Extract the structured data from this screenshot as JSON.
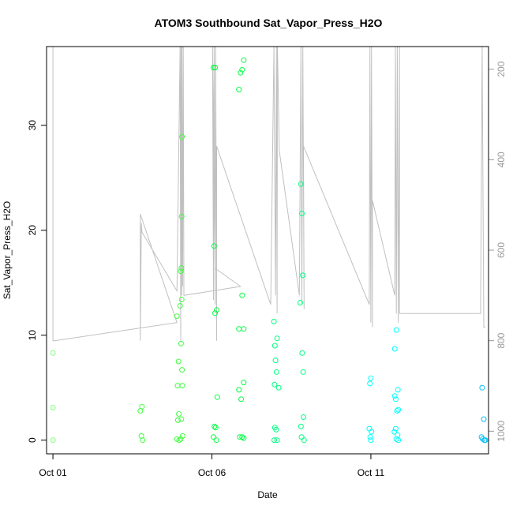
{
  "chart_data": {
    "type": "scatter",
    "title": "ATOM3 Southbound Sat_Vapor_Press_H2O",
    "xlabel": "Date",
    "ylabel": "Sat_Vapor_Press_H2O",
    "x_ticks": [
      {
        "label": "Oct 01",
        "day": 1
      },
      {
        "label": "Oct 06",
        "day": 6
      },
      {
        "label": "Oct 11",
        "day": 11
      }
    ],
    "xlim": [
      0.8,
      14.7
    ],
    "ylim": [
      -1.3,
      37.5
    ],
    "y_ticks": [
      0,
      10,
      20,
      30
    ],
    "y2_ticks": [
      200,
      400,
      600,
      800,
      1000
    ],
    "y2lim": [
      150,
      1050
    ],
    "y2_reversed": true,
    "grid": false,
    "colors": {
      "profile_line": "#c0c0c0",
      "point_colors": [
        "#80ff80",
        "#40ff40",
        "#00ff40",
        "#00ff80",
        "#00ffc0",
        "#00ffff",
        "#00c0ff",
        "#0080ff"
      ]
    },
    "points": [
      {
        "day": 1.0,
        "y": 8.3,
        "c": 0
      },
      {
        "day": 1.0,
        "y": 3.1,
        "c": 0
      },
      {
        "day": 1.0,
        "y": 0.0,
        "c": 0
      },
      {
        "day": 3.75,
        "y": 2.8,
        "c": 1
      },
      {
        "day": 3.8,
        "y": 3.2,
        "c": 1
      },
      {
        "day": 3.78,
        "y": 0.4,
        "c": 1
      },
      {
        "day": 3.82,
        "y": 0.0,
        "c": 1
      },
      {
        "day": 4.9,
        "y": 11.8,
        "c": 1
      },
      {
        "day": 4.92,
        "y": 5.2,
        "c": 1
      },
      {
        "day": 4.95,
        "y": 7.5,
        "c": 1
      },
      {
        "day": 4.96,
        "y": 2.5,
        "c": 1
      },
      {
        "day": 4.93,
        "y": 1.9,
        "c": 1
      },
      {
        "day": 4.9,
        "y": 0.1,
        "c": 1
      },
      {
        "day": 4.97,
        "y": 0.0,
        "c": 1
      },
      {
        "day": 5.0,
        "y": 12.8,
        "c": 1
      },
      {
        "day": 5.02,
        "y": 16.1,
        "c": 1
      },
      {
        "day": 5.04,
        "y": 16.4,
        "c": 1
      },
      {
        "day": 5.05,
        "y": 13.4,
        "c": 1
      },
      {
        "day": 5.05,
        "y": 21.3,
        "c": 1
      },
      {
        "day": 5.06,
        "y": 28.9,
        "c": 1
      },
      {
        "day": 5.03,
        "y": 9.2,
        "c": 1
      },
      {
        "day": 5.06,
        "y": 6.7,
        "c": 1
      },
      {
        "day": 5.07,
        "y": 5.2,
        "c": 1
      },
      {
        "day": 5.04,
        "y": 2.0,
        "c": 1
      },
      {
        "day": 5.08,
        "y": 0.4,
        "c": 1
      },
      {
        "day": 5.02,
        "y": 0.1,
        "c": 1
      },
      {
        "day": 6.05,
        "y": 35.5,
        "c": 2
      },
      {
        "day": 6.1,
        "y": 35.5,
        "c": 2
      },
      {
        "day": 6.07,
        "y": 18.5,
        "c": 2
      },
      {
        "day": 6.1,
        "y": 12.1,
        "c": 2
      },
      {
        "day": 6.15,
        "y": 12.4,
        "c": 2
      },
      {
        "day": 6.17,
        "y": 4.1,
        "c": 2
      },
      {
        "day": 6.08,
        "y": 1.3,
        "c": 2
      },
      {
        "day": 6.12,
        "y": 1.2,
        "c": 2
      },
      {
        "day": 6.05,
        "y": 0.3,
        "c": 2
      },
      {
        "day": 6.14,
        "y": 0.0,
        "c": 2
      },
      {
        "day": 6.85,
        "y": 33.4,
        "c": 2
      },
      {
        "day": 6.9,
        "y": 35.0,
        "c": 2
      },
      {
        "day": 6.95,
        "y": 35.3,
        "c": 2
      },
      {
        "day": 7.0,
        "y": 36.2,
        "c": 2
      },
      {
        "day": 6.95,
        "y": 13.8,
        "c": 2
      },
      {
        "day": 6.85,
        "y": 10.6,
        "c": 2
      },
      {
        "day": 7.0,
        "y": 10.6,
        "c": 2
      },
      {
        "day": 7.0,
        "y": 5.5,
        "c": 2
      },
      {
        "day": 6.85,
        "y": 4.8,
        "c": 2
      },
      {
        "day": 6.92,
        "y": 3.9,
        "c": 2
      },
      {
        "day": 6.88,
        "y": 0.3,
        "c": 2
      },
      {
        "day": 6.95,
        "y": 0.3,
        "c": 2
      },
      {
        "day": 7.0,
        "y": 0.2,
        "c": 2
      },
      {
        "day": 7.95,
        "y": 11.3,
        "c": 3
      },
      {
        "day": 7.98,
        "y": 9.0,
        "c": 3
      },
      {
        "day": 8.05,
        "y": 9.7,
        "c": 3
      },
      {
        "day": 8.0,
        "y": 7.6,
        "c": 3
      },
      {
        "day": 8.03,
        "y": 6.5,
        "c": 3
      },
      {
        "day": 7.97,
        "y": 5.3,
        "c": 3
      },
      {
        "day": 8.1,
        "y": 5.0,
        "c": 3
      },
      {
        "day": 7.98,
        "y": 1.2,
        "c": 3
      },
      {
        "day": 8.02,
        "y": 1.0,
        "c": 3
      },
      {
        "day": 7.96,
        "y": 0.0,
        "c": 3
      },
      {
        "day": 8.05,
        "y": 0.0,
        "c": 3
      },
      {
        "day": 8.8,
        "y": 24.4,
        "c": 3
      },
      {
        "day": 8.83,
        "y": 21.6,
        "c": 3
      },
      {
        "day": 8.86,
        "y": 15.7,
        "c": 3
      },
      {
        "day": 8.78,
        "y": 13.1,
        "c": 3
      },
      {
        "day": 8.84,
        "y": 8.3,
        "c": 3
      },
      {
        "day": 8.87,
        "y": 6.5,
        "c": 3
      },
      {
        "day": 8.88,
        "y": 2.2,
        "c": 3
      },
      {
        "day": 8.8,
        "y": 1.3,
        "c": 3
      },
      {
        "day": 8.82,
        "y": 0.3,
        "c": 3
      },
      {
        "day": 8.9,
        "y": 0.0,
        "c": 3
      },
      {
        "day": 11.0,
        "y": 5.9,
        "c": 5
      },
      {
        "day": 10.97,
        "y": 5.4,
        "c": 5
      },
      {
        "day": 10.95,
        "y": 1.1,
        "c": 5
      },
      {
        "day": 11.02,
        "y": 0.8,
        "c": 5
      },
      {
        "day": 10.98,
        "y": 0.3,
        "c": 5
      },
      {
        "day": 11.0,
        "y": 0.0,
        "c": 5
      },
      {
        "day": 11.8,
        "y": 10.5,
        "c": 5
      },
      {
        "day": 11.75,
        "y": 8.7,
        "c": 5
      },
      {
        "day": 11.85,
        "y": 4.8,
        "c": 5
      },
      {
        "day": 11.75,
        "y": 4.2,
        "c": 5
      },
      {
        "day": 11.78,
        "y": 3.9,
        "c": 5
      },
      {
        "day": 11.82,
        "y": 2.8,
        "c": 5
      },
      {
        "day": 11.86,
        "y": 2.9,
        "c": 5
      },
      {
        "day": 11.78,
        "y": 1.1,
        "c": 5
      },
      {
        "day": 11.74,
        "y": 0.8,
        "c": 5
      },
      {
        "day": 11.84,
        "y": 0.5,
        "c": 5
      },
      {
        "day": 11.8,
        "y": 0.1,
        "c": 5
      },
      {
        "day": 11.86,
        "y": 0.0,
        "c": 5
      },
      {
        "day": 14.5,
        "y": 5.0,
        "c": 6
      },
      {
        "day": 14.55,
        "y": 2.0,
        "c": 6
      },
      {
        "day": 14.48,
        "y": 0.3,
        "c": 6
      },
      {
        "day": 14.52,
        "y": 0.1,
        "c": 6
      },
      {
        "day": 14.57,
        "y": 0.0,
        "c": 6
      },
      {
        "day": 14.6,
        "y": 0.0,
        "c": 6
      }
    ],
    "pressure_profile": [
      [
        1.0,
        150
      ],
      [
        1.0,
        150
      ],
      [
        1.0,
        800
      ],
      [
        1.05,
        800
      ],
      [
        4.9,
        760
      ],
      [
        4.9,
        760
      ],
      [
        3.75,
        520
      ],
      [
        3.75,
        800
      ],
      [
        3.78,
        540
      ],
      [
        3.8,
        560
      ],
      [
        4.9,
        690
      ],
      [
        5.0,
        150
      ],
      [
        5.02,
        800
      ],
      [
        5.03,
        150
      ],
      [
        5.05,
        700
      ],
      [
        5.06,
        150
      ],
      [
        5.08,
        680
      ],
      [
        5.1,
        150
      ],
      [
        5.12,
        700
      ],
      [
        6.9,
        680
      ],
      [
        6.1,
        640
      ],
      [
        6.02,
        150
      ],
      [
        6.05,
        710
      ],
      [
        6.07,
        150
      ],
      [
        6.1,
        720
      ],
      [
        6.12,
        150
      ],
      [
        6.15,
        800
      ],
      [
        6.15,
        370
      ],
      [
        7.85,
        720
      ],
      [
        7.95,
        150
      ],
      [
        8.0,
        700
      ],
      [
        8.03,
        150
      ],
      [
        8.05,
        740
      ],
      [
        8.06,
        150
      ],
      [
        8.12,
        380
      ],
      [
        8.75,
        700
      ],
      [
        8.8,
        150
      ],
      [
        8.83,
        720
      ],
      [
        8.86,
        150
      ],
      [
        8.9,
        730
      ],
      [
        8.88,
        370
      ],
      [
        10.95,
        720
      ],
      [
        10.97,
        150
      ],
      [
        11.0,
        760
      ],
      [
        11.02,
        150
      ],
      [
        11.05,
        770
      ],
      [
        11.05,
        490
      ],
      [
        11.75,
        700
      ],
      [
        11.77,
        150
      ],
      [
        11.8,
        740
      ],
      [
        11.83,
        150
      ],
      [
        11.86,
        760
      ],
      [
        11.9,
        150
      ],
      [
        11.9,
        740
      ],
      [
        14.45,
        740
      ],
      [
        14.5,
        150
      ],
      [
        14.55,
        770
      ],
      [
        14.6,
        770
      ]
    ]
  }
}
